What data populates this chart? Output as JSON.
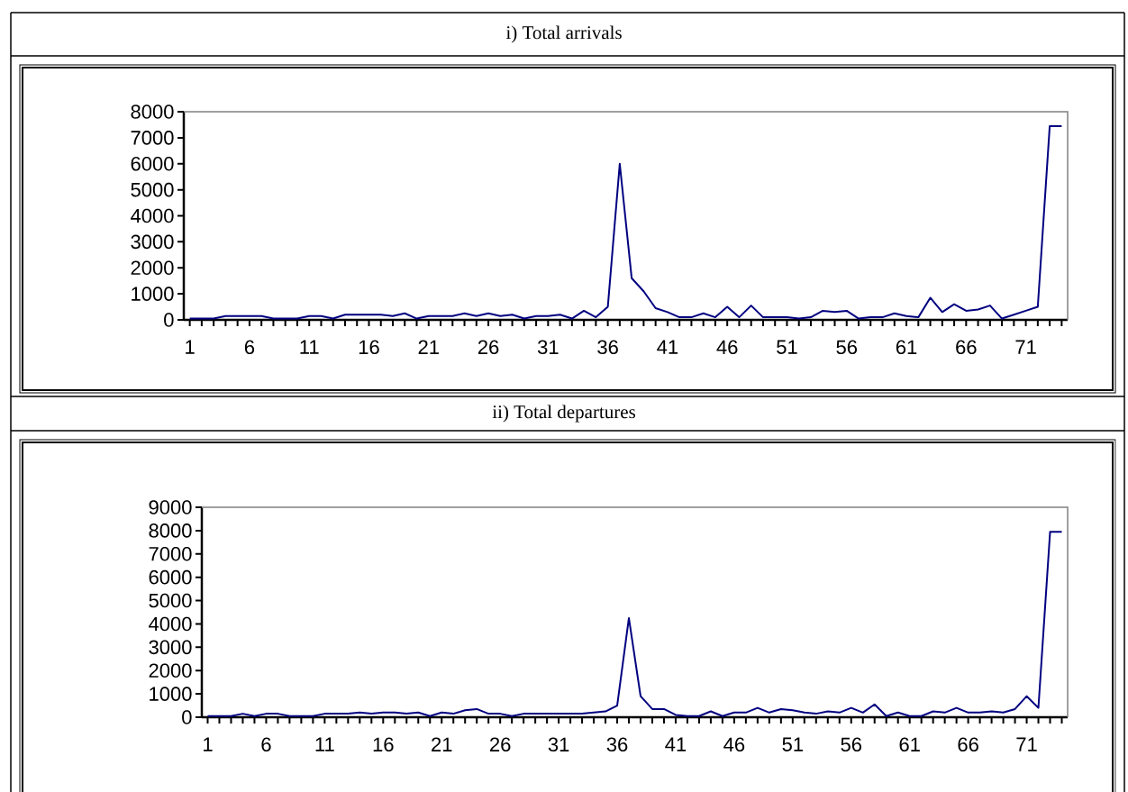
{
  "chart_data": [
    {
      "type": "line",
      "title": "i) Total arrivals",
      "color": "#000080",
      "ylim": [
        0,
        8000
      ],
      "yticks": [
        0,
        1000,
        2000,
        3000,
        4000,
        5000,
        6000,
        7000,
        8000
      ],
      "categories": [
        "1",
        null,
        null,
        null,
        null,
        "6",
        null,
        null,
        null,
        null,
        "11",
        null,
        null,
        null,
        null,
        "16",
        null,
        null,
        null,
        null,
        "21",
        null,
        null,
        null,
        null,
        "26",
        null,
        null,
        null,
        null,
        "31",
        null,
        null,
        null,
        null,
        "36",
        null,
        null,
        null,
        null,
        "41",
        null,
        null,
        null,
        null,
        "46",
        null,
        null,
        null,
        null,
        "51",
        null,
        null,
        null,
        null,
        "56",
        null,
        null,
        null,
        null,
        "61",
        null,
        null,
        null,
        null,
        "66",
        null,
        null,
        null,
        null,
        "71",
        null,
        null,
        null
      ],
      "values": [
        50,
        50,
        50,
        150,
        150,
        150,
        150,
        50,
        50,
        50,
        150,
        150,
        50,
        200,
        200,
        200,
        200,
        150,
        250,
        50,
        150,
        150,
        150,
        250,
        150,
        250,
        150,
        200,
        50,
        150,
        150,
        200,
        50,
        350,
        100,
        500,
        6000,
        1600,
        1100,
        450,
        300,
        100,
        100,
        250,
        100,
        500,
        100,
        550,
        100,
        100,
        100,
        50,
        100,
        350,
        300,
        350,
        50,
        100,
        100,
        250,
        150,
        100,
        850,
        300,
        600,
        350,
        400,
        550,
        50,
        200,
        350,
        500,
        7450,
        7450
      ]
    },
    {
      "type": "line",
      "title": "ii) Total departures",
      "color": "#000080",
      "ylim": [
        0,
        9000
      ],
      "yticks": [
        0,
        1000,
        2000,
        3000,
        4000,
        5000,
        6000,
        7000,
        8000,
        9000
      ],
      "categories": [
        "1",
        null,
        null,
        null,
        null,
        "6",
        null,
        null,
        null,
        null,
        "11",
        null,
        null,
        null,
        null,
        "16",
        null,
        null,
        null,
        null,
        "21",
        null,
        null,
        null,
        null,
        "26",
        null,
        null,
        null,
        null,
        "31",
        null,
        null,
        null,
        null,
        "36",
        null,
        null,
        null,
        null,
        "41",
        null,
        null,
        null,
        null,
        "46",
        null,
        null,
        null,
        null,
        "51",
        null,
        null,
        null,
        null,
        "56",
        null,
        null,
        null,
        null,
        "61",
        null,
        null,
        null,
        null,
        "66",
        null,
        null,
        null,
        null,
        "71",
        null,
        null,
        null
      ],
      "values": [
        50,
        50,
        50,
        150,
        50,
        150,
        150,
        50,
        50,
        50,
        150,
        150,
        150,
        200,
        150,
        200,
        200,
        150,
        200,
        50,
        200,
        150,
        300,
        350,
        150,
        150,
        50,
        150,
        150,
        150,
        150,
        150,
        150,
        200,
        250,
        500,
        4250,
        900,
        350,
        350,
        100,
        50,
        50,
        250,
        50,
        200,
        200,
        400,
        200,
        350,
        300,
        200,
        150,
        250,
        200,
        400,
        200,
        550,
        50,
        200,
        50,
        50,
        250,
        200,
        400,
        200,
        200,
        250,
        200,
        350,
        900,
        400,
        7950,
        7950
      ]
    }
  ]
}
